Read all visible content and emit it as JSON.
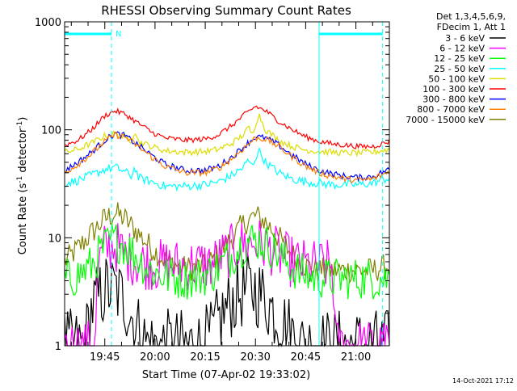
{
  "chart_data": {
    "type": "line",
    "title": "RHESSI Observing Summary Count Rates",
    "xlabel": "Start Time (07-Apr-02 19:33:02)",
    "ylabel": "Count Rate (s⁻¹ detector⁻¹)",
    "yscale": "log",
    "ylim": [
      1,
      1000
    ],
    "xlim_minutes": [
      0,
      97
    ],
    "x_ticks": [
      {
        "label": "19:45",
        "min": 12
      },
      {
        "label": "20:00",
        "min": 27
      },
      {
        "label": "20:15",
        "min": 42
      },
      {
        "label": "20:30",
        "min": 57
      },
      {
        "label": "20:45",
        "min": 72
      },
      {
        "label": "21:00",
        "min": 87
      }
    ],
    "y_ticks": [
      {
        "label": "1",
        "value": 1
      },
      {
        "label": "10",
        "value": 10
      },
      {
        "label": "100",
        "value": 100
      },
      {
        "label": "1000",
        "value": 1000
      }
    ],
    "legend_header": [
      "Det 1,3,4,5,6,9,",
      "FDecim 1, Att 1"
    ],
    "legend_placement": "right",
    "series": [
      {
        "name": "3 - 6 keV",
        "color": "#000000",
        "x": [
          0,
          6,
          8,
          12,
          15,
          18,
          21,
          24,
          27,
          40,
          44,
          46,
          50,
          54,
          57,
          60,
          62,
          66,
          70,
          71,
          72,
          97
        ],
        "y": [
          1,
          1,
          2.2,
          3.3,
          3.3,
          2.6,
          1.6,
          1.1,
          1,
          1,
          1.2,
          1.7,
          2.6,
          3.3,
          3.3,
          2.7,
          2.2,
          1.5,
          1.1,
          1,
          1,
          1
        ]
      },
      {
        "name": "6 - 12 keV",
        "color": "#ff00ff",
        "x": [
          0,
          9,
          10,
          12,
          15,
          18,
          22,
          27,
          32,
          38,
          44,
          48,
          52,
          56,
          60,
          64,
          68,
          72,
          76,
          80,
          81,
          97
        ],
        "y": [
          1,
          1,
          5.5,
          8,
          8.5,
          7,
          6,
          5.6,
          5.6,
          5.6,
          5.7,
          7,
          8.5,
          9,
          8.5,
          7,
          6,
          5.5,
          5.5,
          5.5,
          1,
          1
        ]
      },
      {
        "name": "12 - 25 keV",
        "color": "#00ff00",
        "x": [
          0,
          4,
          8,
          11,
          14,
          17,
          20,
          24,
          28,
          32,
          36,
          40,
          44,
          48,
          52,
          55,
          58,
          62,
          66,
          70,
          74,
          80,
          86,
          97
        ],
        "y": [
          4,
          4.5,
          5.5,
          7.5,
          9.5,
          9,
          7.5,
          5.5,
          4.6,
          4.3,
          4.2,
          4.3,
          4.8,
          6,
          8,
          9.5,
          9.5,
          8,
          6,
          4.8,
          4.3,
          4.2,
          4.2,
          4.2
        ]
      },
      {
        "name": "25 - 50 keV",
        "color": "#00ffff",
        "x": [
          0,
          4,
          8,
          12,
          15,
          18,
          20,
          21,
          22,
          26,
          30,
          36,
          42,
          46,
          50,
          53,
          55,
          56,
          58,
          60,
          64,
          68,
          72,
          76,
          80,
          84,
          88,
          92,
          97
        ],
        "y": [
          32,
          34,
          38,
          43,
          45,
          41,
          37,
          46,
          36,
          33,
          30,
          30,
          31,
          33,
          38,
          44,
          52,
          46,
          65,
          50,
          40,
          35,
          33,
          32,
          31,
          31,
          31,
          32,
          36
        ]
      },
      {
        "name": "50 - 100 keV",
        "color": "#dddd00",
        "x": [
          0,
          4,
          8,
          12,
          15,
          18,
          20,
          21,
          22,
          26,
          30,
          36,
          42,
          46,
          50,
          53,
          55,
          56,
          58,
          60,
          64,
          68,
          72,
          76,
          80,
          84,
          88,
          92,
          97
        ],
        "y": [
          62,
          66,
          75,
          88,
          92,
          85,
          80,
          100,
          78,
          70,
          64,
          62,
          63,
          66,
          75,
          88,
          105,
          90,
          140,
          100,
          80,
          70,
          65,
          63,
          62,
          61,
          61,
          62,
          66
        ]
      },
      {
        "name": "100 - 300 keV",
        "color": "#ff0000",
        "x": [
          0,
          4,
          8,
          12,
          15,
          18,
          22,
          26,
          30,
          36,
          42,
          46,
          50,
          54,
          57,
          60,
          64,
          68,
          72,
          76,
          80,
          84,
          88,
          92,
          97
        ],
        "y": [
          72,
          80,
          100,
          135,
          150,
          140,
          115,
          95,
          84,
          80,
          82,
          90,
          110,
          140,
          165,
          150,
          120,
          100,
          86,
          78,
          74,
          72,
          70,
          70,
          78
        ]
      },
      {
        "name": "300 - 800 keV",
        "color": "#0000ff",
        "x": [
          0,
          4,
          8,
          12,
          15,
          18,
          22,
          26,
          30,
          36,
          42,
          46,
          50,
          54,
          57,
          60,
          64,
          68,
          72,
          76,
          80,
          84,
          88,
          92,
          97
        ],
        "y": [
          42,
          50,
          62,
          80,
          92,
          88,
          72,
          58,
          48,
          42,
          42,
          46,
          56,
          72,
          86,
          84,
          72,
          58,
          48,
          42,
          39,
          37,
          36,
          37,
          43
        ]
      },
      {
        "name": "800 - 7000 keV",
        "color": "#ff8000",
        "x": [
          0,
          4,
          8,
          12,
          15,
          18,
          22,
          26,
          30,
          36,
          42,
          46,
          50,
          54,
          57,
          60,
          64,
          68,
          72,
          76,
          80,
          84,
          88,
          92,
          97
        ],
        "y": [
          40,
          48,
          60,
          78,
          90,
          86,
          70,
          56,
          46,
          40,
          40,
          44,
          54,
          70,
          84,
          82,
          70,
          56,
          46,
          40,
          37,
          35,
          34,
          35,
          41
        ]
      },
      {
        "name": "7000 - 15000 keV",
        "color": "#808000",
        "x": [
          0,
          4,
          8,
          12,
          15,
          18,
          22,
          26,
          30,
          36,
          42,
          46,
          50,
          54,
          57,
          60,
          64,
          68,
          72,
          76,
          80,
          84,
          88,
          92,
          97
        ],
        "y": [
          6,
          8,
          11,
          15,
          17,
          15,
          11,
          8,
          6.2,
          5.2,
          5.4,
          7,
          10,
          14,
          16,
          14,
          10,
          7,
          5.5,
          5,
          5,
          5,
          5,
          5,
          5.5
        ]
      }
    ],
    "annotations": [
      {
        "text": "N",
        "color": "#00ffff"
      }
    ],
    "top_bars": [
      {
        "from": 0,
        "to": 14,
        "color": "#00ffff"
      },
      {
        "from": 76,
        "to": 95,
        "color": "#00ffff"
      }
    ],
    "vertical_markers": [
      {
        "x": 0,
        "style": "solid",
        "color": "#00ffff"
      },
      {
        "x": 14,
        "style": "dashed",
        "color": "#00ffff"
      },
      {
        "x": 76,
        "style": "solid",
        "color": "#00ffff"
      },
      {
        "x": 95,
        "style": "dashed",
        "color": "#00ffff"
      }
    ],
    "grid": false
  },
  "footer": {
    "timestamp": "14-Oct-2021 17:12"
  }
}
